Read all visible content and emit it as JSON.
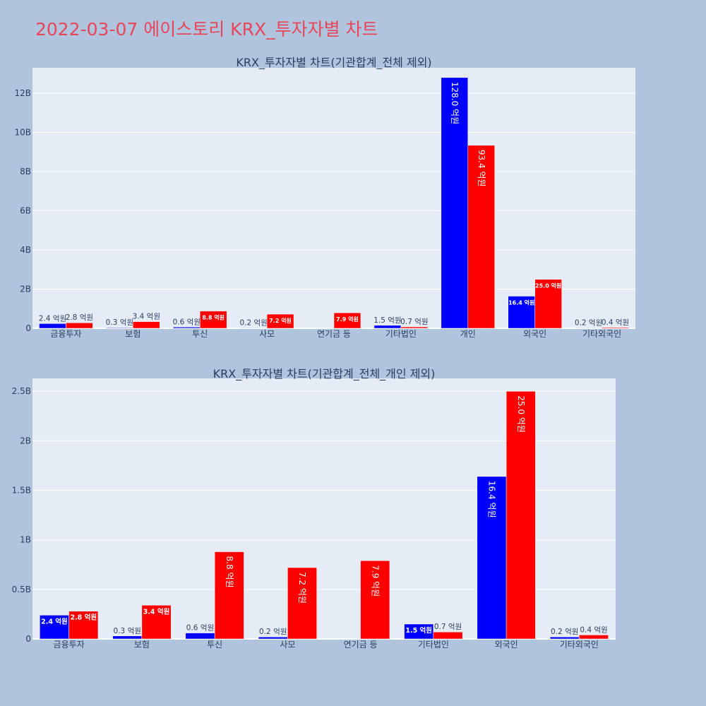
{
  "page_title": "2022-03-07 에이스토리 KRX_투자자별 차트",
  "colors": {
    "buy": "#0000ff",
    "sell": "#ff0000",
    "title": "#e8465a",
    "page_bg": "#b0c4de",
    "plot_bg": "#e5ecf6"
  },
  "chart_data": [
    {
      "type": "bar",
      "title": "KRX_투자자별 차트(기관합계_전체 제외)",
      "categories": [
        "금융투자",
        "보험",
        "투신",
        "사모",
        "연기금 등",
        "기타법인",
        "개인",
        "외국인",
        "기타외국인"
      ],
      "series": [
        {
          "color": "#0000ff",
          "values": [
            0.24,
            0.03,
            0.06,
            0.02,
            0,
            0.15,
            12.8,
            1.64,
            0.02
          ],
          "labels": [
            "2.4 억원",
            "0.3 억원",
            "0.6 억원",
            "0.2 억원",
            "",
            "1.5 억원",
            "128.0 억원",
            "16.4 억원",
            "0.2 억원"
          ]
        },
        {
          "color": "#ff0000",
          "values": [
            0.28,
            0.34,
            0.88,
            0.72,
            0.79,
            0.07,
            9.34,
            2.5,
            0.04
          ],
          "labels": [
            "2.8 억원",
            "3.4 억원",
            "8.8 억원",
            "7.2 억원",
            "7.9 억원",
            "0.7 억원",
            "93.4 억원",
            "25.0 억원",
            "0.4 억원"
          ]
        }
      ],
      "y_unit": "B",
      "ylim": [
        0,
        13.3
      ],
      "yticks": [
        0,
        2,
        4,
        6,
        8,
        10,
        12
      ],
      "ytick_labels": [
        "0",
        "2B",
        "4B",
        "6B",
        "8B",
        "10B",
        "12B"
      ]
    },
    {
      "type": "bar",
      "title": "KRX_투자자별 차트(기관합계_전체_개인 제외)",
      "categories": [
        "금융투자",
        "보험",
        "투신",
        "사모",
        "연기금 등",
        "기타법인",
        "외국인",
        "기타외국인"
      ],
      "series": [
        {
          "color": "#0000ff",
          "values": [
            0.24,
            0.03,
            0.06,
            0.02,
            0,
            0.15,
            1.64,
            0.02
          ],
          "labels": [
            "2.4 억원",
            "0.3 억원",
            "0.6 억원",
            "0.2 억원",
            "",
            "1.5 억원",
            "16.4 억원",
            "0.2 억원"
          ]
        },
        {
          "color": "#ff0000",
          "values": [
            0.28,
            0.34,
            0.88,
            0.72,
            0.79,
            0.07,
            2.5,
            0.04
          ],
          "labels": [
            "2.8 억원",
            "3.4 억원",
            "8.8 억원",
            "7.2 억원",
            "7.9 억원",
            "0.7 억원",
            "25.0 억원",
            "0.4 억원"
          ]
        }
      ],
      "y_unit": "B",
      "ylim": [
        0,
        2.63
      ],
      "yticks": [
        0,
        0.5,
        1,
        1.5,
        2,
        2.5
      ],
      "ytick_labels": [
        "0",
        "0.5B",
        "1B",
        "1.5B",
        "2B",
        "2.5B"
      ]
    }
  ]
}
